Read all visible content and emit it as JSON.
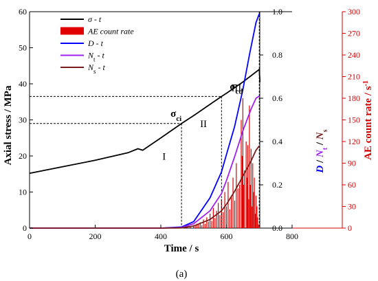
{
  "chart_data": {
    "type": "line",
    "caption": "(a)",
    "xlabel": "Time / s",
    "ylabel_left": "Axial stress / MPa",
    "ylabel_right1_parts": [
      "D",
      " / ",
      "N",
      "t",
      " / ",
      "N",
      "s"
    ],
    "ylabel_right2": "AE count rate / s",
    "ylabel_right2_sup": "-1",
    "xlim": [
      0,
      800
    ],
    "x_ticks": [
      "0",
      "200",
      "400",
      "600",
      "800"
    ],
    "ylim_left": [
      0,
      60
    ],
    "y_left_ticks": [
      "0",
      "10",
      "20",
      "30",
      "40",
      "50",
      "60"
    ],
    "ylim_right1": [
      0,
      1.0
    ],
    "y_right1_ticks": [
      "0.0",
      "0.2",
      "0.4",
      "0.6",
      "0.8",
      "1.0"
    ],
    "ylim_right2": [
      0,
      300
    ],
    "y_right2_ticks": [
      "0",
      "30",
      "60",
      "90",
      "120",
      "150",
      "180",
      "210",
      "240",
      "270",
      "300"
    ],
    "legend_position": "top-left",
    "legend": [
      {
        "label": "σ - t",
        "kind": "line",
        "color": "#000000"
      },
      {
        "label": "AE count rate",
        "kind": "box",
        "color": "#e00000"
      },
      {
        "label": "D - t",
        "kind": "line",
        "color": "#0000ff"
      },
      {
        "label_parts": [
          "N",
          "t",
          " - t"
        ],
        "kind": "line",
        "color": "#a020f0"
      },
      {
        "label_parts": [
          "N",
          "s",
          " - t"
        ],
        "kind": "line",
        "color": "#7a1c1c"
      }
    ],
    "annotations": {
      "sigma_cd": {
        "sym": "σ",
        "sub": "cd",
        "x": 585,
        "y": 36.5
      },
      "sigma_ci": {
        "sym": "σ",
        "sub": "ci",
        "x": 463,
        "y": 29
      },
      "stages": [
        {
          "label": "I",
          "x": 410,
          "y": 19
        },
        {
          "label": "II",
          "x": 530,
          "y": 28
        },
        {
          "label": "III",
          "x": 630,
          "y": 38
        }
      ],
      "vlines_x": [
        463,
        585,
        700
      ]
    },
    "series": [
      {
        "name": "σ - t",
        "axis": "left",
        "color": "#000000",
        "x": [
          0,
          100,
          200,
          300,
          330,
          345,
          400,
          463,
          500,
          585,
          600,
          650,
          700,
          702
        ],
        "y": [
          15.2,
          17.0,
          18.8,
          20.9,
          22.0,
          21.6,
          25.0,
          29.0,
          31.2,
          36.5,
          37.4,
          40.5,
          44.0,
          40.5
        ]
      },
      {
        "name": "D - t",
        "axis": "right1",
        "color": "#0000ff",
        "x": [
          0,
          400,
          463,
          500,
          550,
          585,
          600,
          625,
          650,
          670,
          690,
          700
        ],
        "y": [
          0,
          0,
          0.005,
          0.03,
          0.14,
          0.26,
          0.34,
          0.47,
          0.64,
          0.8,
          0.95,
          0.99
        ]
      },
      {
        "name": "Nt - t",
        "axis": "right1",
        "color": "#a020f0",
        "x": [
          0,
          400,
          463,
          500,
          550,
          585,
          600,
          625,
          650,
          675,
          690,
          700
        ],
        "y": [
          0,
          0,
          0.003,
          0.02,
          0.08,
          0.16,
          0.22,
          0.33,
          0.45,
          0.55,
          0.6,
          0.61
        ]
      },
      {
        "name": "Ns - t",
        "axis": "right1",
        "color": "#7a1c1c",
        "x": [
          0,
          400,
          463,
          500,
          550,
          585,
          600,
          625,
          650,
          675,
          690,
          700
        ],
        "y": [
          0,
          0,
          0.001,
          0.01,
          0.04,
          0.08,
          0.11,
          0.17,
          0.24,
          0.31,
          0.36,
          0.38
        ]
      }
    ],
    "ae_count_rate": {
      "name": "AE count rate",
      "axis": "right2",
      "color": "#e00000",
      "x": [
        470,
        480,
        490,
        500,
        505,
        510,
        515,
        520,
        525,
        530,
        535,
        540,
        545,
        550,
        555,
        560,
        565,
        570,
        575,
        580,
        585,
        590,
        595,
        600,
        605,
        610,
        615,
        620,
        625,
        630,
        635,
        640,
        645,
        648,
        650,
        652,
        655,
        660,
        663,
        665,
        668,
        670,
        673,
        675,
        678,
        680,
        683,
        685,
        688,
        690,
        693,
        695,
        698
      ],
      "y": [
        1,
        2,
        2,
        4,
        3,
        6,
        5,
        8,
        4,
        12,
        6,
        15,
        9,
        20,
        10,
        28,
        14,
        24,
        35,
        18,
        40,
        22,
        50,
        30,
        64,
        26,
        45,
        70,
        38,
        90,
        55,
        60,
        150,
        100,
        180,
        60,
        80,
        120,
        70,
        115,
        40,
        170,
        60,
        110,
        30,
        90,
        50,
        70,
        20,
        45,
        30,
        15,
        5
      ]
    }
  }
}
